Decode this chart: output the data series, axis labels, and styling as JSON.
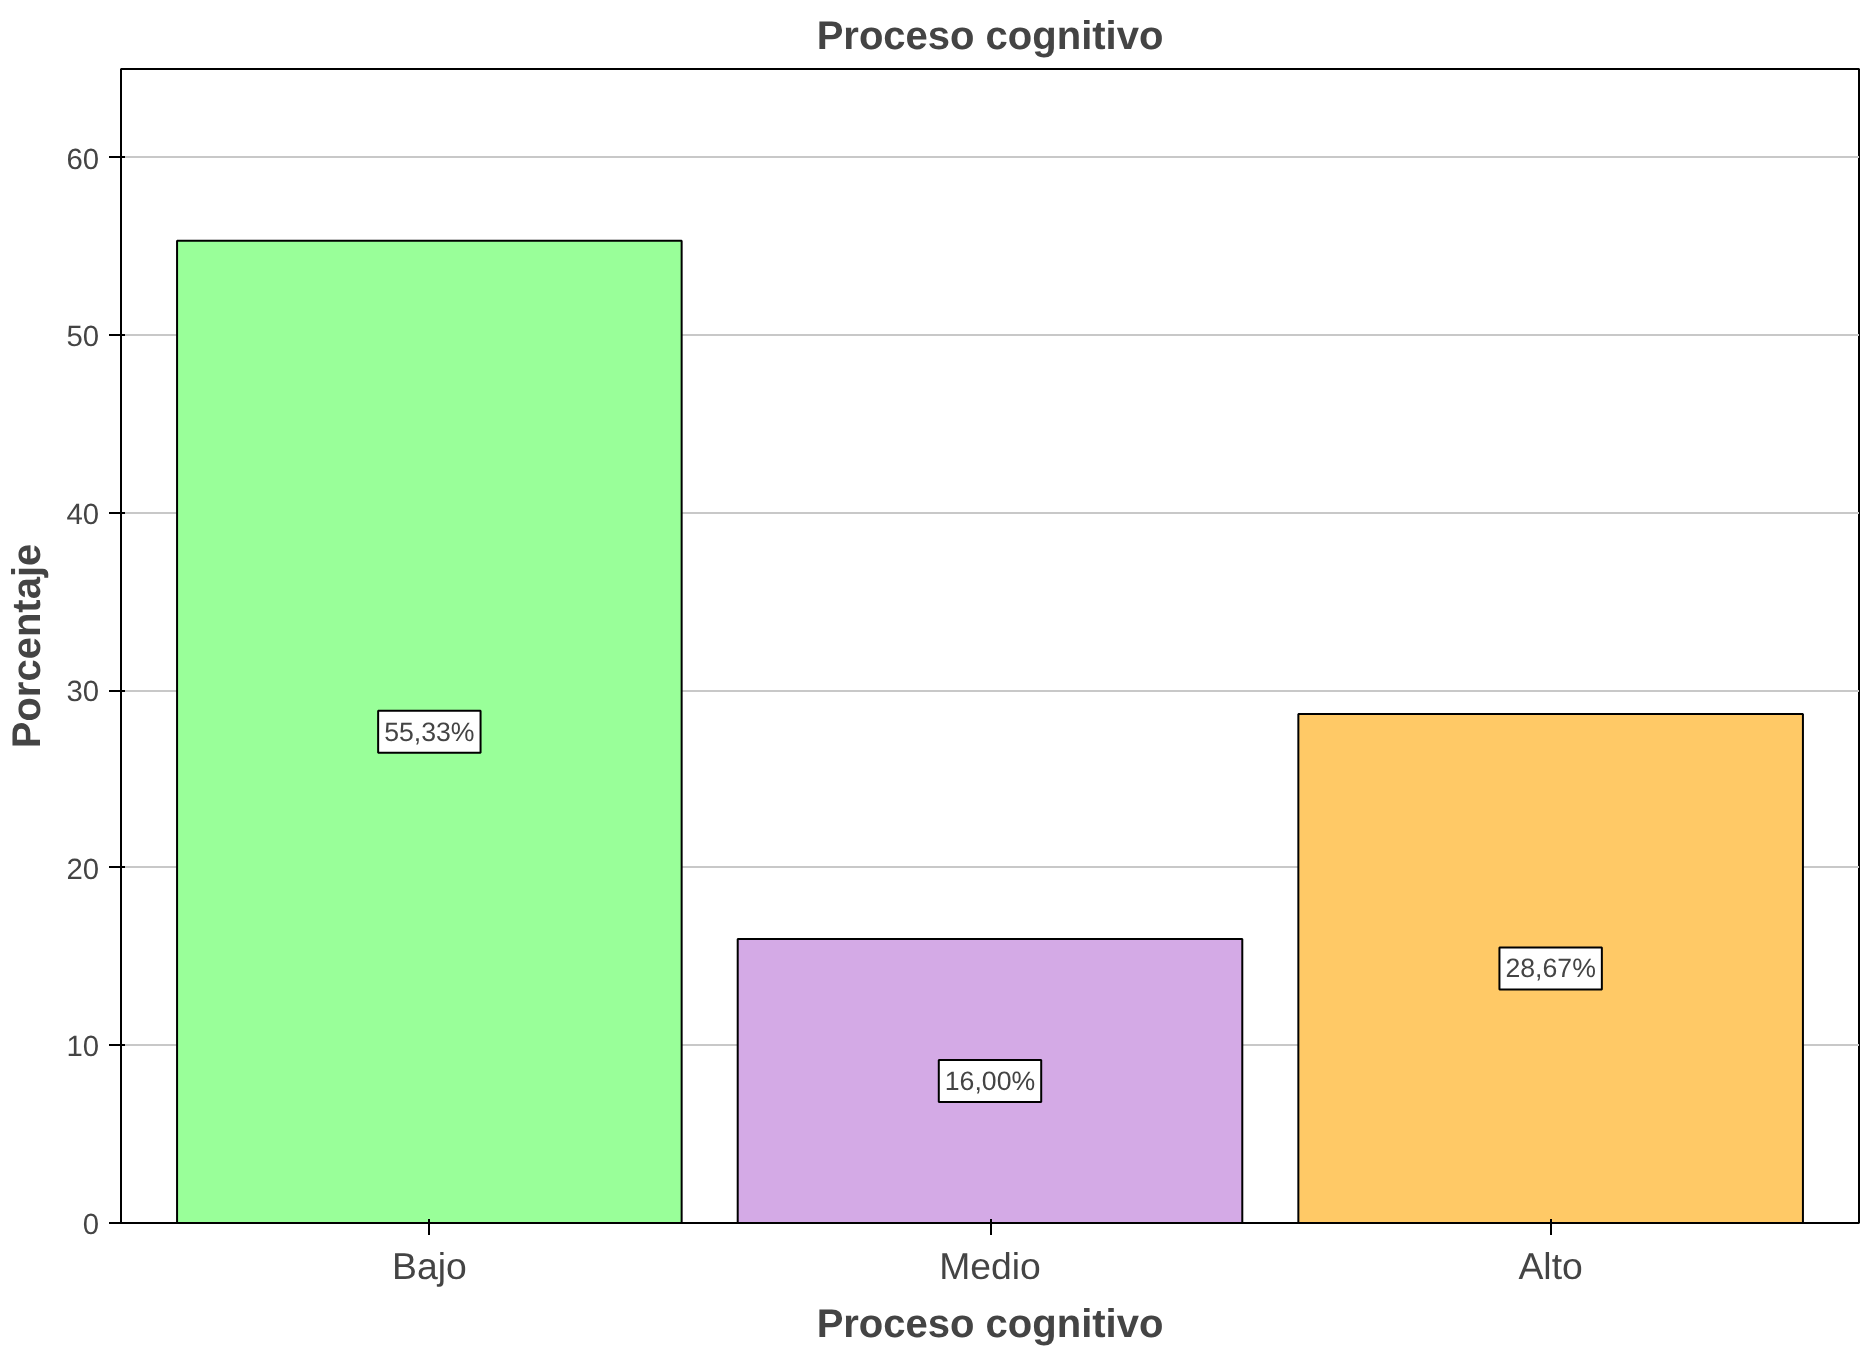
{
  "chart_data": {
    "type": "bar",
    "title": "Proceso cognitivo",
    "xlabel": "Proceso cognitivo",
    "ylabel": "Porcentaje",
    "categories": [
      "Bajo",
      "Medio",
      "Alto"
    ],
    "values": [
      55.33,
      16.0,
      28.67
    ],
    "colors": [
      "#99ff99",
      "#d4aae6",
      "#ffc966"
    ],
    "value_labels": [
      "55,33%",
      "16,00%",
      "28,67%"
    ],
    "ylim": [
      0,
      65
    ],
    "yticks": [
      0,
      10,
      20,
      30,
      40,
      50,
      60
    ],
    "grid": "y"
  }
}
